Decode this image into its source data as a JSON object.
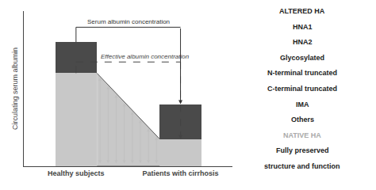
{
  "chart_data": {
    "type": "bar",
    "stacked": true,
    "categories": [
      "Healthy subjects",
      "Patients with cirrhosis"
    ],
    "series": [
      {
        "color": "#c8c8c8",
        "values": [
          7.5,
          2.2
        ]
      },
      {
        "color": "#4a4a4a",
        "values": [
          2.5,
          2.8
        ]
      }
    ],
    "ylabel": "Circulating serum albumin",
    "ylim": [
      0,
      12.5
    ],
    "yticks": [],
    "grid": false,
    "tick_labels": "x",
    "annotations": [
      {
        "text": "Serum albumin concentration",
        "color": "#333333"
      },
      {
        "text": "Effective albumin concentration",
        "color": "#444444"
      },
      {
        "text": "ALTERED HA",
        "color": "#222222"
      },
      {
        "text": "HNA1",
        "color": "#222222"
      },
      {
        "text": "HNA2",
        "color": "#222222"
      },
      {
        "text": "Glycosylated",
        "color": "#222222"
      },
      {
        "text": "N-terminal truncated",
        "color": "#222222"
      },
      {
        "text": "C-terminal truncated",
        "color": "#222222"
      },
      {
        "text": "IMA",
        "color": "#222222"
      },
      {
        "text": "Others",
        "color": "#222222"
      },
      {
        "text": "NATIVE HA",
        "color": "#aaaaaa"
      },
      {
        "text": "Fully preserved",
        "color": "#222222"
      },
      {
        "text": "structure and function",
        "color": "#222222"
      }
    ]
  }
}
